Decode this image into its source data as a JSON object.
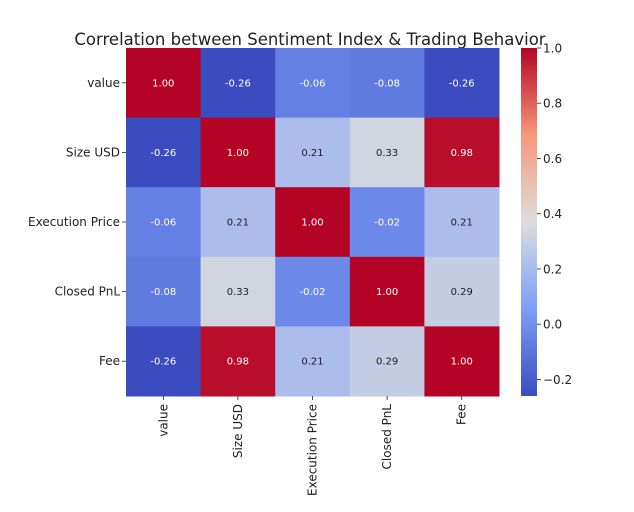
{
  "chart_data": {
    "type": "heatmap",
    "title": "Correlation between Sentiment Index & Trading Behavior",
    "rows": [
      "value",
      "Size USD",
      "Execution Price",
      "Closed PnL",
      "Fee"
    ],
    "columns": [
      "value",
      "Size USD",
      "Execution Price",
      "Closed PnL",
      "Fee"
    ],
    "values": [
      [
        1.0,
        -0.26,
        -0.06,
        -0.08,
        -0.26
      ],
      [
        -0.26,
        1.0,
        0.21,
        0.33,
        0.98
      ],
      [
        -0.06,
        0.21,
        1.0,
        -0.02,
        0.21
      ],
      [
        -0.08,
        0.33,
        -0.02,
        1.0,
        0.29
      ],
      [
        -0.26,
        0.98,
        0.21,
        0.29,
        1.0
      ]
    ],
    "value_labels": [
      [
        "1.00",
        "-0.26",
        "-0.06",
        "-0.08",
        "-0.26"
      ],
      [
        "-0.26",
        "1.00",
        "0.21",
        "0.33",
        "0.98"
      ],
      [
        "-0.06",
        "0.21",
        "1.00",
        "-0.02",
        "0.21"
      ],
      [
        "-0.08",
        "0.33",
        "-0.02",
        "1.00",
        "0.29"
      ],
      [
        "-0.26",
        "0.98",
        "0.21",
        "0.29",
        "1.00"
      ]
    ],
    "colormap": "coolwarm",
    "colorbar": {
      "range": [
        -0.26,
        1.0
      ],
      "ticks": [
        -0.2,
        0.0,
        0.2,
        0.4,
        0.6,
        0.8,
        1.0
      ],
      "tick_labels": [
        "−0.2",
        "0.0",
        "0.2",
        "0.4",
        "0.6",
        "0.8",
        "1.0"
      ]
    },
    "colors": {
      "low": "#3b4cc0",
      "mid": "#dddddd",
      "high": "#b40426"
    }
  }
}
